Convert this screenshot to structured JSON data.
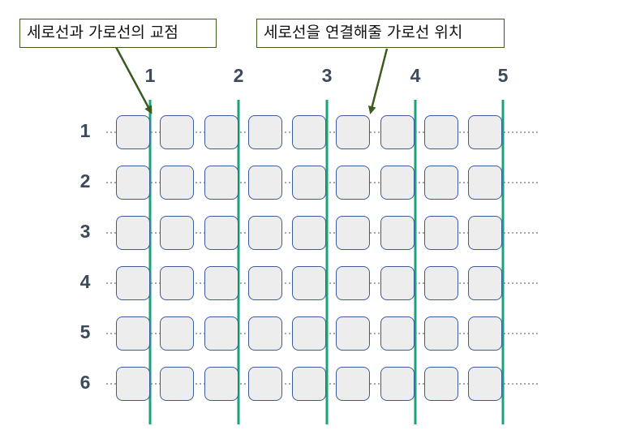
{
  "callouts": {
    "intersection": "세로선과 가로선의 교점",
    "connection": "세로선을 연결해줄 가로선 위치"
  },
  "column_labels": [
    "1",
    "2",
    "3",
    "4",
    "5"
  ],
  "row_labels": [
    "1",
    "2",
    "3",
    "4",
    "5",
    "6"
  ],
  "colors": {
    "vertical_line": "#1aa37a",
    "horizontal_line": "#a8a8a8",
    "cell_fill": "#ededed",
    "cell_border": "#3b5b9c",
    "callout_border": "#3a5a1e",
    "arrow": "#3a5a1e",
    "label": "#3d4a5c"
  }
}
